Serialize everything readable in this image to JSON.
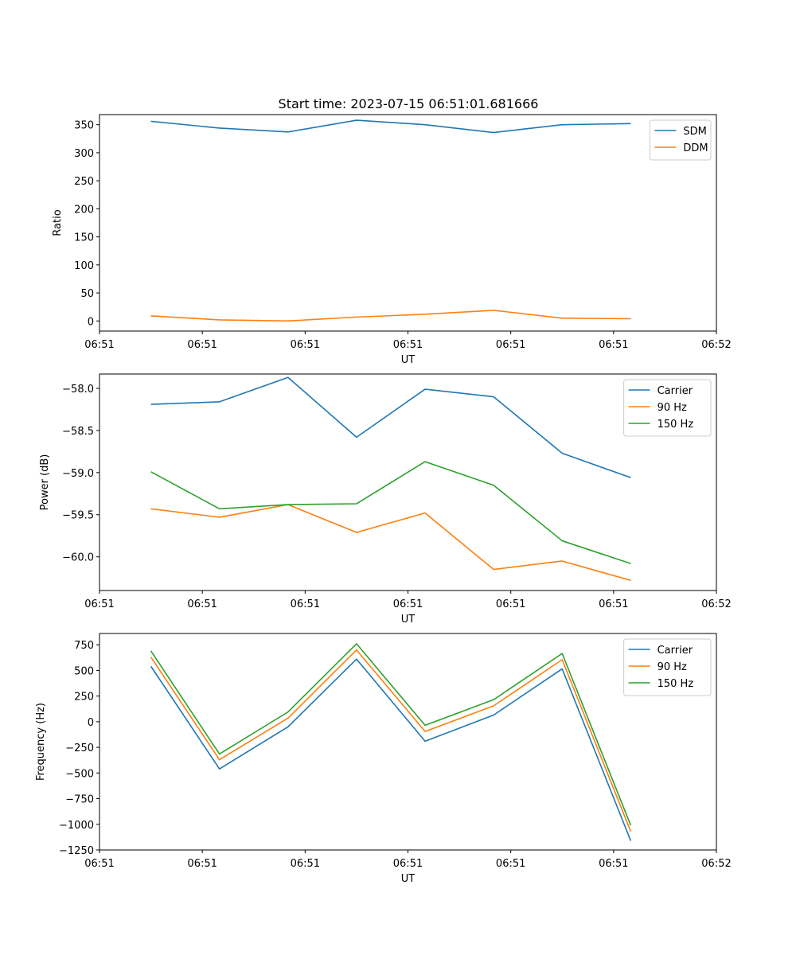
{
  "figure": {
    "title": "Start time: 2023-07-15 06:51:01.681666"
  },
  "chart_data": [
    {
      "type": "line",
      "title": "Start time: 2023-07-15 06:51:01.681666",
      "xlabel": "UT",
      "ylabel": "Ratio",
      "x": [
        1,
        2,
        3,
        4,
        5,
        6,
        7,
        8
      ],
      "xlim": [
        0.25,
        9.25
      ],
      "xticks": [
        0.25,
        1.75,
        3.25,
        4.75,
        6.25,
        7.75,
        9.25
      ],
      "xtick_labels": [
        "06:51",
        "06:51",
        "06:51",
        "06:51",
        "06:51",
        "06:51",
        "06:52"
      ],
      "ylim": [
        -18,
        368
      ],
      "yticks": [
        0,
        50,
        100,
        150,
        200,
        250,
        300,
        350
      ],
      "ytick_labels": [
        "0",
        "50",
        "100",
        "150",
        "200",
        "250",
        "300",
        "350"
      ],
      "legend_position": "top-right",
      "series": [
        {
          "name": "SDM",
          "color": "#1f77b4",
          "values": [
            356,
            344,
            337,
            358,
            350,
            336,
            350,
            352
          ]
        },
        {
          "name": "DDM",
          "color": "#ff7f0e",
          "values": [
            9,
            2,
            0,
            7,
            12,
            19,
            5,
            4
          ]
        }
      ]
    },
    {
      "type": "line",
      "title": "",
      "xlabel": "UT",
      "ylabel": "Power (dB)",
      "x": [
        1,
        2,
        3,
        4,
        5,
        6,
        7,
        8
      ],
      "xlim": [
        0.25,
        9.25
      ],
      "xticks": [
        0.25,
        1.75,
        3.25,
        4.75,
        6.25,
        7.75,
        9.25
      ],
      "xtick_labels": [
        "06:51",
        "06:51",
        "06:51",
        "06:51",
        "06:51",
        "06:51",
        "06:52"
      ],
      "ylim": [
        -60.4,
        -57.83
      ],
      "yticks": [
        -60.0,
        -59.5,
        -59.0,
        -58.5,
        -58.0
      ],
      "ytick_labels": [
        "−60.0",
        "−59.5",
        "−59.0",
        "−58.5",
        "−58.0"
      ],
      "legend_position": "top-right",
      "series": [
        {
          "name": "Carrier",
          "color": "#1f77b4",
          "values": [
            -58.19,
            -58.16,
            -57.87,
            -58.58,
            -58.01,
            -58.1,
            -58.77,
            -59.06
          ]
        },
        {
          "name": "90 Hz",
          "color": "#ff7f0e",
          "values": [
            -59.43,
            -59.53,
            -59.38,
            -59.71,
            -59.48,
            -60.15,
            -60.05,
            -60.28
          ]
        },
        {
          "name": "150 Hz",
          "color": "#2ca02c",
          "values": [
            -58.99,
            -59.43,
            -59.38,
            -59.37,
            -58.87,
            -59.15,
            -59.81,
            -60.08
          ]
        }
      ]
    },
    {
      "type": "line",
      "title": "",
      "xlabel": "UT",
      "ylabel": "Frequency (Hz)",
      "x": [
        1,
        2,
        3,
        4,
        5,
        6,
        7,
        8
      ],
      "xlim": [
        0.25,
        9.25
      ],
      "xticks": [
        0.25,
        1.75,
        3.25,
        4.75,
        6.25,
        7.75,
        9.25
      ],
      "xtick_labels": [
        "06:51",
        "06:51",
        "06:51",
        "06:51",
        "06:51",
        "06:51",
        "06:52"
      ],
      "ylim": [
        -1250,
        860
      ],
      "yticks": [
        -1250,
        -1000,
        -750,
        -500,
        -250,
        0,
        250,
        500,
        750
      ],
      "ytick_labels": [
        "−1250",
        "−1000",
        "−750",
        "−500",
        "−250",
        "0",
        "250",
        "500",
        "750"
      ],
      "legend_position": "top-right",
      "series": [
        {
          "name": "Carrier",
          "color": "#1f77b4",
          "values": [
            540,
            -460,
            -50,
            610,
            -190,
            65,
            515,
            -1160
          ]
        },
        {
          "name": "90 Hz",
          "color": "#ff7f0e",
          "values": [
            630,
            -370,
            35,
            700,
            -95,
            155,
            605,
            -1070
          ]
        },
        {
          "name": "150 Hz",
          "color": "#2ca02c",
          "values": [
            690,
            -315,
            95,
            760,
            -35,
            215,
            665,
            -1010
          ]
        }
      ]
    }
  ]
}
